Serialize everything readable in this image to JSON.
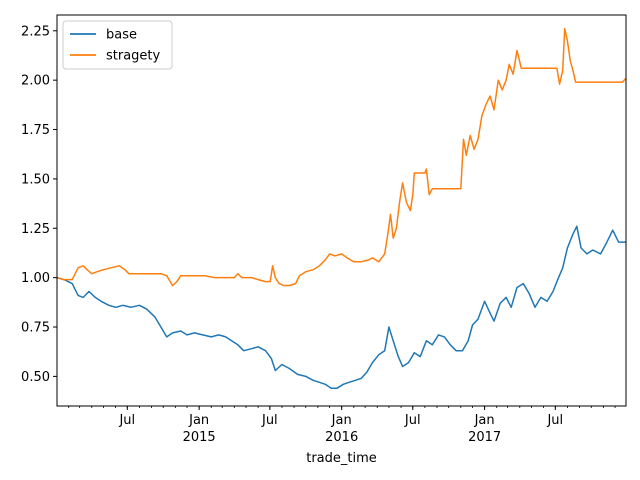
{
  "chart_data": {
    "type": "line",
    "xlabel": "trade_time",
    "ylabel": "",
    "ylim": [
      0.35,
      2.33
    ],
    "xlim": [
      "2014-01-02",
      "2017-12-29"
    ],
    "yticks": [
      0.5,
      0.75,
      1.0,
      1.25,
      1.5,
      1.75,
      2.0,
      2.25
    ],
    "ytick_labels": [
      "0.50",
      "0.75",
      "1.00",
      "1.25",
      "1.50",
      "1.75",
      "2.00",
      "2.25"
    ],
    "xticks": [
      {
        "date": "2014-07-01",
        "label": "Jul",
        "sublabel": ""
      },
      {
        "date": "2015-01-01",
        "label": "Jan",
        "sublabel": "2015"
      },
      {
        "date": "2015-07-01",
        "label": "Jul",
        "sublabel": ""
      },
      {
        "date": "2016-01-01",
        "label": "Jan",
        "sublabel": "2016"
      },
      {
        "date": "2016-07-01",
        "label": "Jul",
        "sublabel": ""
      },
      {
        "date": "2017-01-01",
        "label": "Jan",
        "sublabel": "2017"
      },
      {
        "date": "2017-07-01",
        "label": "Jul",
        "sublabel": ""
      }
    ],
    "grid": false,
    "legend": "top-left",
    "series": [
      {
        "name": "base",
        "color": "#1f77b4",
        "points": [
          [
            "2014-01-02",
            1.0
          ],
          [
            "2014-01-20",
            0.99
          ],
          [
            "2014-02-10",
            0.97
          ],
          [
            "2014-02-25",
            0.91
          ],
          [
            "2014-03-10",
            0.9
          ],
          [
            "2014-03-25",
            0.93
          ],
          [
            "2014-04-10",
            0.9
          ],
          [
            "2014-04-25",
            0.88
          ],
          [
            "2014-05-15",
            0.86
          ],
          [
            "2014-06-01",
            0.85
          ],
          [
            "2014-06-20",
            0.86
          ],
          [
            "2014-07-10",
            0.85
          ],
          [
            "2014-08-01",
            0.86
          ],
          [
            "2014-08-20",
            0.84
          ],
          [
            "2014-09-10",
            0.8
          ],
          [
            "2014-09-25",
            0.75
          ],
          [
            "2014-10-10",
            0.7
          ],
          [
            "2014-10-25",
            0.72
          ],
          [
            "2014-11-15",
            0.73
          ],
          [
            "2014-12-01",
            0.71
          ],
          [
            "2014-12-20",
            0.72
          ],
          [
            "2015-01-10",
            0.71
          ],
          [
            "2015-02-01",
            0.7
          ],
          [
            "2015-02-20",
            0.71
          ],
          [
            "2015-03-10",
            0.7
          ],
          [
            "2015-03-25",
            0.68
          ],
          [
            "2015-04-10",
            0.66
          ],
          [
            "2015-04-25",
            0.63
          ],
          [
            "2015-05-15",
            0.64
          ],
          [
            "2015-06-01",
            0.65
          ],
          [
            "2015-06-20",
            0.63
          ],
          [
            "2015-07-05",
            0.59
          ],
          [
            "2015-07-15",
            0.53
          ],
          [
            "2015-08-01",
            0.56
          ],
          [
            "2015-08-20",
            0.54
          ],
          [
            "2015-09-10",
            0.51
          ],
          [
            "2015-10-01",
            0.5
          ],
          [
            "2015-10-20",
            0.48
          ],
          [
            "2015-11-05",
            0.47
          ],
          [
            "2015-11-20",
            0.46
          ],
          [
            "2015-12-05",
            0.44
          ],
          [
            "2015-12-20",
            0.44
          ],
          [
            "2016-01-05",
            0.46
          ],
          [
            "2016-01-20",
            0.47
          ],
          [
            "2016-02-05",
            0.48
          ],
          [
            "2016-02-20",
            0.49
          ],
          [
            "2016-03-05",
            0.52
          ],
          [
            "2016-03-20",
            0.57
          ],
          [
            "2016-04-05",
            0.61
          ],
          [
            "2016-04-20",
            0.63
          ],
          [
            "2016-05-01",
            0.75
          ],
          [
            "2016-05-12",
            0.68
          ],
          [
            "2016-05-25",
            0.6
          ],
          [
            "2016-06-05",
            0.55
          ],
          [
            "2016-06-20",
            0.57
          ],
          [
            "2016-07-05",
            0.62
          ],
          [
            "2016-07-20",
            0.6
          ],
          [
            "2016-08-05",
            0.68
          ],
          [
            "2016-08-20",
            0.66
          ],
          [
            "2016-09-05",
            0.71
          ],
          [
            "2016-09-20",
            0.7
          ],
          [
            "2016-10-05",
            0.66
          ],
          [
            "2016-10-20",
            0.63
          ],
          [
            "2016-11-05",
            0.63
          ],
          [
            "2016-11-20",
            0.68
          ],
          [
            "2016-12-01",
            0.76
          ],
          [
            "2016-12-15",
            0.79
          ],
          [
            "2017-01-01",
            0.88
          ],
          [
            "2017-01-15",
            0.82
          ],
          [
            "2017-01-25",
            0.78
          ],
          [
            "2017-02-10",
            0.87
          ],
          [
            "2017-02-25",
            0.9
          ],
          [
            "2017-03-10",
            0.85
          ],
          [
            "2017-03-25",
            0.95
          ],
          [
            "2017-04-10",
            0.97
          ],
          [
            "2017-04-25",
            0.92
          ],
          [
            "2017-05-10",
            0.85
          ],
          [
            "2017-05-25",
            0.9
          ],
          [
            "2017-06-10",
            0.88
          ],
          [
            "2017-06-25",
            0.93
          ],
          [
            "2017-07-05",
            0.98
          ],
          [
            "2017-07-20",
            1.05
          ],
          [
            "2017-08-01",
            1.15
          ],
          [
            "2017-08-15",
            1.22
          ],
          [
            "2017-08-25",
            1.26
          ],
          [
            "2017-09-05",
            1.15
          ],
          [
            "2017-09-20",
            1.12
          ],
          [
            "2017-10-05",
            1.14
          ],
          [
            "2017-10-25",
            1.12
          ],
          [
            "2017-11-10",
            1.18
          ],
          [
            "2017-11-25",
            1.24
          ],
          [
            "2017-12-10",
            1.18
          ],
          [
            "2017-12-29",
            1.18
          ]
        ]
      },
      {
        "name": "stragety",
        "color": "#ff7f0e",
        "points": [
          [
            "2014-01-02",
            1.0
          ],
          [
            "2014-01-20",
            0.99
          ],
          [
            "2014-02-10",
            0.99
          ],
          [
            "2014-02-25",
            1.05
          ],
          [
            "2014-03-10",
            1.06
          ],
          [
            "2014-03-20",
            1.04
          ],
          [
            "2014-04-01",
            1.02
          ],
          [
            "2014-04-15",
            1.03
          ],
          [
            "2014-05-01",
            1.04
          ],
          [
            "2014-05-20",
            1.05
          ],
          [
            "2014-06-10",
            1.06
          ],
          [
            "2014-06-25",
            1.04
          ],
          [
            "2014-07-05",
            1.02
          ],
          [
            "2014-07-20",
            1.02
          ],
          [
            "2014-08-15",
            1.02
          ],
          [
            "2014-09-10",
            1.02
          ],
          [
            "2014-09-25",
            1.02
          ],
          [
            "2014-10-10",
            1.01
          ],
          [
            "2014-10-25",
            0.96
          ],
          [
            "2014-11-05",
            0.98
          ],
          [
            "2014-11-15",
            1.01
          ],
          [
            "2014-12-01",
            1.01
          ],
          [
            "2015-01-15",
            1.01
          ],
          [
            "2015-02-10",
            1.0
          ],
          [
            "2015-03-15",
            1.0
          ],
          [
            "2015-04-01",
            1.0
          ],
          [
            "2015-04-10",
            1.02
          ],
          [
            "2015-04-20",
            1.0
          ],
          [
            "2015-05-15",
            1.0
          ],
          [
            "2015-06-01",
            0.99
          ],
          [
            "2015-06-20",
            0.98
          ],
          [
            "2015-07-02",
            0.98
          ],
          [
            "2015-07-08",
            1.06
          ],
          [
            "2015-07-15",
            1.0
          ],
          [
            "2015-07-25",
            0.97
          ],
          [
            "2015-08-05",
            0.96
          ],
          [
            "2015-08-20",
            0.96
          ],
          [
            "2015-09-05",
            0.97
          ],
          [
            "2015-09-15",
            1.01
          ],
          [
            "2015-10-01",
            1.03
          ],
          [
            "2015-10-20",
            1.04
          ],
          [
            "2015-11-05",
            1.06
          ],
          [
            "2015-11-20",
            1.09
          ],
          [
            "2015-12-01",
            1.12
          ],
          [
            "2015-12-15",
            1.11
          ],
          [
            "2016-01-01",
            1.12
          ],
          [
            "2016-01-15",
            1.1
          ],
          [
            "2016-02-01",
            1.08
          ],
          [
            "2016-02-20",
            1.08
          ],
          [
            "2016-03-10",
            1.09
          ],
          [
            "2016-03-20",
            1.1
          ],
          [
            "2016-04-05",
            1.08
          ],
          [
            "2016-04-20",
            1.12
          ],
          [
            "2016-04-28",
            1.22
          ],
          [
            "2016-05-05",
            1.32
          ],
          [
            "2016-05-12",
            1.2
          ],
          [
            "2016-05-20",
            1.25
          ],
          [
            "2016-05-28",
            1.38
          ],
          [
            "2016-06-05",
            1.48
          ],
          [
            "2016-06-15",
            1.38
          ],
          [
            "2016-06-25",
            1.34
          ],
          [
            "2016-07-01",
            1.42
          ],
          [
            "2016-07-05",
            1.53
          ],
          [
            "2016-07-20",
            1.53
          ],
          [
            "2016-08-01",
            1.53
          ],
          [
            "2016-08-05",
            1.55
          ],
          [
            "2016-08-12",
            1.42
          ],
          [
            "2016-08-20",
            1.45
          ],
          [
            "2016-09-20",
            1.45
          ],
          [
            "2016-10-20",
            1.45
          ],
          [
            "2016-11-01",
            1.45
          ],
          [
            "2016-11-08",
            1.7
          ],
          [
            "2016-11-15",
            1.62
          ],
          [
            "2016-11-25",
            1.72
          ],
          [
            "2016-12-05",
            1.65
          ],
          [
            "2016-12-15",
            1.7
          ],
          [
            "2016-12-25",
            1.82
          ],
          [
            "2017-01-05",
            1.88
          ],
          [
            "2017-01-15",
            1.92
          ],
          [
            "2017-01-25",
            1.85
          ],
          [
            "2017-02-05",
            2.0
          ],
          [
            "2017-02-15",
            1.95
          ],
          [
            "2017-02-25",
            2.0
          ],
          [
            "2017-03-05",
            2.08
          ],
          [
            "2017-03-15",
            2.03
          ],
          [
            "2017-03-25",
            2.15
          ],
          [
            "2017-04-05",
            2.06
          ],
          [
            "2017-05-01",
            2.06
          ],
          [
            "2017-06-01",
            2.06
          ],
          [
            "2017-07-01",
            2.06
          ],
          [
            "2017-07-05",
            2.06
          ],
          [
            "2017-07-12",
            1.98
          ],
          [
            "2017-07-20",
            2.05
          ],
          [
            "2017-07-25",
            2.26
          ],
          [
            "2017-08-01",
            2.2
          ],
          [
            "2017-08-08",
            2.1
          ],
          [
            "2017-08-15",
            2.05
          ],
          [
            "2017-08-22",
            1.99
          ],
          [
            "2017-09-20",
            1.99
          ],
          [
            "2017-10-20",
            1.99
          ],
          [
            "2017-11-20",
            1.99
          ],
          [
            "2017-12-20",
            1.99
          ],
          [
            "2017-12-29",
            2.01
          ]
        ]
      }
    ]
  }
}
